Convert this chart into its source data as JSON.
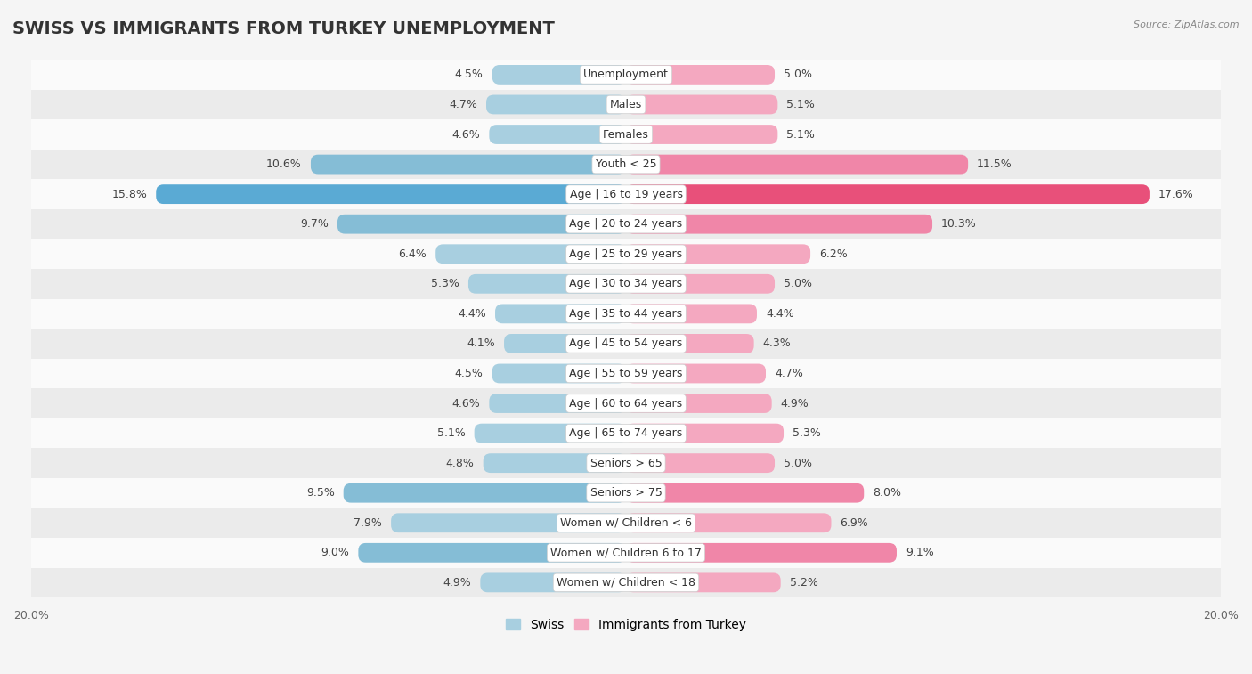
{
  "title": "SWISS VS IMMIGRANTS FROM TURKEY UNEMPLOYMENT",
  "source": "Source: ZipAtlas.com",
  "categories": [
    "Unemployment",
    "Males",
    "Females",
    "Youth < 25",
    "Age | 16 to 19 years",
    "Age | 20 to 24 years",
    "Age | 25 to 29 years",
    "Age | 30 to 34 years",
    "Age | 35 to 44 years",
    "Age | 45 to 54 years",
    "Age | 55 to 59 years",
    "Age | 60 to 64 years",
    "Age | 65 to 74 years",
    "Seniors > 65",
    "Seniors > 75",
    "Women w/ Children < 6",
    "Women w/ Children 6 to 17",
    "Women w/ Children < 18"
  ],
  "swiss_values": [
    4.5,
    4.7,
    4.6,
    10.6,
    15.8,
    9.7,
    6.4,
    5.3,
    4.4,
    4.1,
    4.5,
    4.6,
    5.1,
    4.8,
    9.5,
    7.9,
    9.0,
    4.9
  ],
  "turkey_values": [
    5.0,
    5.1,
    5.1,
    11.5,
    17.6,
    10.3,
    6.2,
    5.0,
    4.4,
    4.3,
    4.7,
    4.9,
    5.3,
    5.0,
    8.0,
    6.9,
    9.1,
    5.2
  ],
  "swiss_color_normal": "#a8cfe0",
  "swiss_color_medium": "#85bdd6",
  "swiss_color_high": "#5aaad4",
  "turkey_color_normal": "#f4a8c0",
  "turkey_color_medium": "#f086a8",
  "turkey_color_high": "#e8507a",
  "background_color": "#f5f5f5",
  "row_bg_colors": [
    "#fafafa",
    "#ebebeb"
  ],
  "max_val": 20.0,
  "legend_swiss": "Swiss",
  "legend_turkey": "Immigrants from Turkey",
  "title_fontsize": 14,
  "label_fontsize": 9,
  "value_fontsize": 9
}
